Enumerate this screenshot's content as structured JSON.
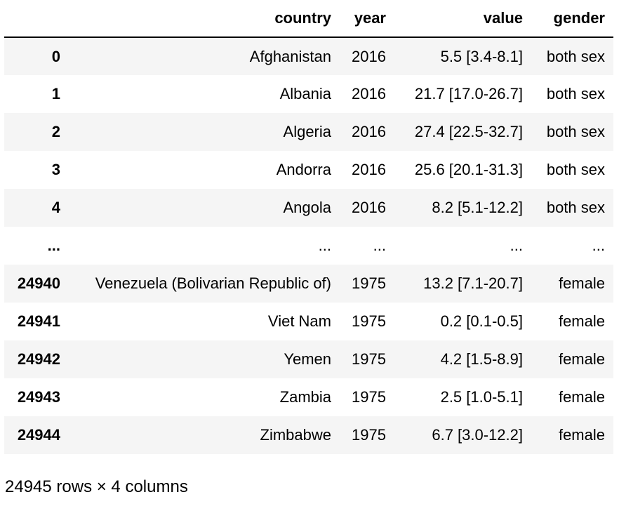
{
  "table": {
    "columns": [
      "country",
      "year",
      "value",
      "gender"
    ],
    "rows": [
      {
        "index": "0",
        "country": "Afghanistan",
        "year": "2016",
        "value": "5.5 [3.4-8.1]",
        "gender": "both sex"
      },
      {
        "index": "1",
        "country": "Albania",
        "year": "2016",
        "value": "21.7 [17.0-26.7]",
        "gender": "both sex"
      },
      {
        "index": "2",
        "country": "Algeria",
        "year": "2016",
        "value": "27.4 [22.5-32.7]",
        "gender": "both sex"
      },
      {
        "index": "3",
        "country": "Andorra",
        "year": "2016",
        "value": "25.6 [20.1-31.3]",
        "gender": "both sex"
      },
      {
        "index": "4",
        "country": "Angola",
        "year": "2016",
        "value": "8.2 [5.1-12.2]",
        "gender": "both sex"
      },
      {
        "index": "...",
        "country": "...",
        "year": "...",
        "value": "...",
        "gender": "..."
      },
      {
        "index": "24940",
        "country": "Venezuela (Bolivarian Republic of)",
        "year": "1975",
        "value": "13.2 [7.1-20.7]",
        "gender": "female"
      },
      {
        "index": "24941",
        "country": "Viet Nam",
        "year": "1975",
        "value": "0.2 [0.1-0.5]",
        "gender": "female"
      },
      {
        "index": "24942",
        "country": "Yemen",
        "year": "1975",
        "value": "4.2 [1.5-8.9]",
        "gender": "female"
      },
      {
        "index": "24943",
        "country": "Zambia",
        "year": "1975",
        "value": "2.5 [1.0-5.1]",
        "gender": "female"
      },
      {
        "index": "24944",
        "country": "Zimbabwe",
        "year": "1975",
        "value": "6.7 [3.0-12.2]",
        "gender": "female"
      }
    ]
  },
  "shape_text": "24945 rows × 4 columns",
  "colors": {
    "stripe": "#f5f5f5",
    "text": "#000000",
    "background": "#ffffff"
  }
}
